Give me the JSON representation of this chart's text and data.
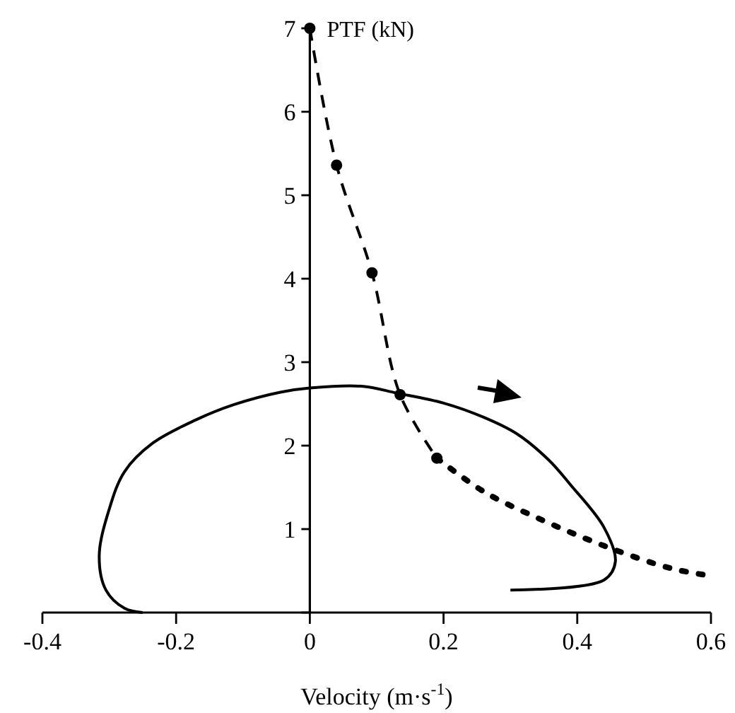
{
  "chart_data": {
    "type": "line",
    "ylabel": "PTF (kN)",
    "xlabel": "Velocity (m·s$^{-1}$)",
    "xlim": [
      -0.4,
      0.6
    ],
    "xticks": [
      -0.4,
      -0.2,
      0,
      0.2,
      0.4,
      0.6
    ],
    "ylim": [
      0,
      7
    ],
    "yticks": [
      {
        "value": 0,
        "label": null
      },
      1,
      2,
      3,
      4,
      5,
      6,
      7
    ],
    "series": [
      {
        "color": "#000000",
        "marker": "none",
        "line_style": "solid",
        "x": [
          0.3,
          0.44,
          0.457,
          0.44,
          0.39,
          0.357,
          0.31,
          0.26,
          0.2,
          0.13,
          0.08,
          0,
          -0.044,
          -0.114,
          -0.17,
          -0.235,
          -0.277,
          -0.3,
          -0.315,
          -0.305,
          -0.277,
          -0.25
        ],
        "values": [
          0.27,
          0.39,
          0.61,
          1.02,
          1.53,
          1.83,
          2.14,
          2.34,
          2.51,
          2.63,
          2.71,
          2.69,
          2.64,
          2.49,
          2.31,
          2.03,
          1.69,
          1.24,
          0.68,
          0.27,
          0.05,
          0
        ]
      },
      {
        "color": "#000000",
        "marker": "circle",
        "line_style": "dashed",
        "x": [
          0,
          0.04,
          0.093,
          0.135,
          0.19
        ],
        "values": [
          7,
          5.36,
          4.07,
          2.61,
          1.85
        ]
      },
      {
        "color": "#000000",
        "marker": "none",
        "line_style": "dotted",
        "x": [
          0.19,
          0.26,
          0.336,
          0.44,
          0.54,
          0.6
        ],
        "values": [
          1.85,
          1.45,
          1.15,
          0.8,
          0.53,
          0.44
        ]
      }
    ]
  }
}
